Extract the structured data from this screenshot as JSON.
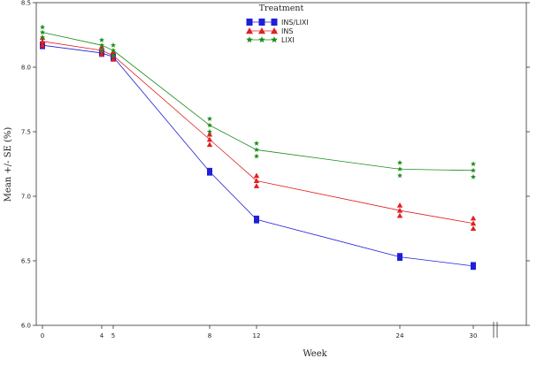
{
  "chart_data": {
    "type": "line",
    "xlabel": "Week",
    "ylabel": "Mean +/- SE (%)",
    "ylim": [
      6.0,
      8.5
    ],
    "yticks": [
      "6.0",
      "6.5",
      "7.0",
      "7.5",
      "8.0",
      "8.5"
    ],
    "xticks": [
      {
        "value": 0,
        "label": "0"
      },
      {
        "value": 4,
        "label": "4"
      },
      {
        "value": 5,
        "label": "5"
      },
      {
        "value": 8,
        "label": "8"
      },
      {
        "value": 12,
        "label": "12"
      },
      {
        "value": 24,
        "label": "24"
      },
      {
        "value": 30,
        "label": "30"
      }
    ],
    "legend": {
      "title": "Treatment",
      "position": "top-center"
    },
    "grid": false,
    "series": [
      {
        "name": "INS/LIXI",
        "color": "#1f1fd8",
        "marker": "square",
        "x": [
          0,
          4,
          5,
          8,
          12,
          24,
          30
        ],
        "y": [
          8.17,
          8.11,
          8.08,
          7.19,
          6.82,
          6.53,
          6.46
        ],
        "se": [
          0.03,
          0.03,
          0.03,
          0.03,
          0.03,
          0.03,
          0.03
        ]
      },
      {
        "name": "INS",
        "color": "#e02020",
        "marker": "triangle",
        "x": [
          0,
          4,
          5,
          8,
          12,
          24,
          30
        ],
        "y": [
          8.2,
          8.13,
          8.09,
          7.44,
          7.12,
          6.89,
          6.79
        ],
        "se": [
          0.03,
          0.03,
          0.03,
          0.04,
          0.04,
          0.04,
          0.04
        ]
      },
      {
        "name": "LIXI",
        "color": "#1a8c1a",
        "marker": "star",
        "x": [
          0,
          4,
          5,
          8,
          12,
          24,
          30
        ],
        "y": [
          8.27,
          8.17,
          8.13,
          7.55,
          7.36,
          7.21,
          7.2
        ],
        "se": [
          0.04,
          0.04,
          0.04,
          0.05,
          0.05,
          0.05,
          0.05
        ]
      }
    ]
  }
}
